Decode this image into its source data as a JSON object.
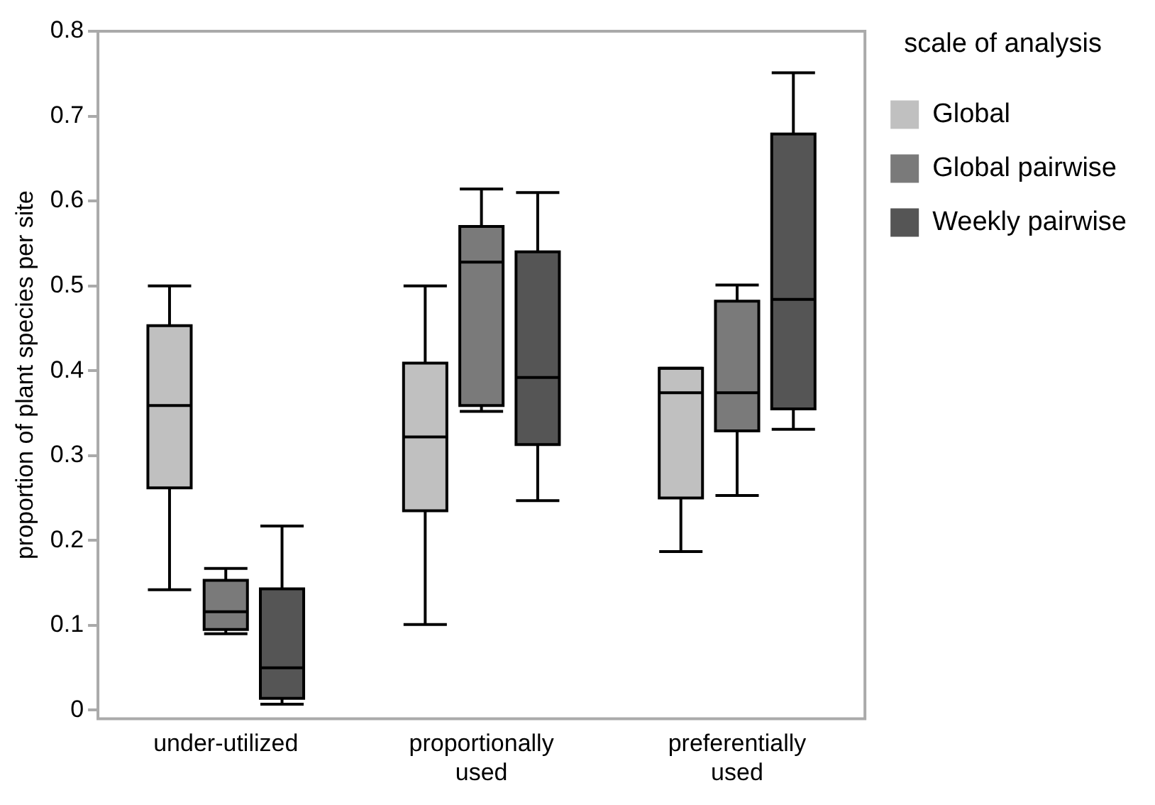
{
  "chart_data": {
    "type": "box",
    "ylabel": "proportion of plant species per site",
    "legend_title": "scale of analysis",
    "categories": [
      "under-utilized",
      "proportionally used",
      "preferentially used"
    ],
    "ylim": [
      -0.01,
      0.8
    ],
    "yticks": [
      0,
      0.1,
      0.2,
      0.3,
      0.4,
      0.5,
      0.6,
      0.7,
      0.8
    ],
    "grid": false,
    "legend": "top right",
    "series": [
      {
        "name": "Global",
        "color": "#c0c0c0",
        "boxes": [
          {
            "low": 0.142,
            "q1": 0.262,
            "median": 0.359,
            "q3": 0.453,
            "high": 0.5
          },
          {
            "low": 0.101,
            "q1": 0.235,
            "median": 0.322,
            "q3": 0.409,
            "high": 0.5
          },
          {
            "low": 0.187,
            "q1": 0.25,
            "median": 0.374,
            "q3": 0.403,
            "high": 0.403
          }
        ]
      },
      {
        "name": "Global pairwise",
        "color": "#7a7a7a",
        "boxes": [
          {
            "low": 0.09,
            "q1": 0.095,
            "median": 0.116,
            "q3": 0.153,
            "high": 0.167
          },
          {
            "low": 0.352,
            "q1": 0.359,
            "median": 0.528,
            "q3": 0.57,
            "high": 0.614
          },
          {
            "low": 0.253,
            "q1": 0.329,
            "median": 0.374,
            "q3": 0.482,
            "high": 0.501
          }
        ]
      },
      {
        "name": "Weekly pairwise",
        "color": "#555555",
        "boxes": [
          {
            "low": 0.007,
            "q1": 0.014,
            "median": 0.05,
            "q3": 0.143,
            "high": 0.217
          },
          {
            "low": 0.247,
            "q1": 0.313,
            "median": 0.392,
            "q3": 0.54,
            "high": 0.61
          },
          {
            "low": 0.331,
            "q1": 0.355,
            "median": 0.484,
            "q3": 0.679,
            "high": 0.751
          }
        ]
      }
    ]
  }
}
